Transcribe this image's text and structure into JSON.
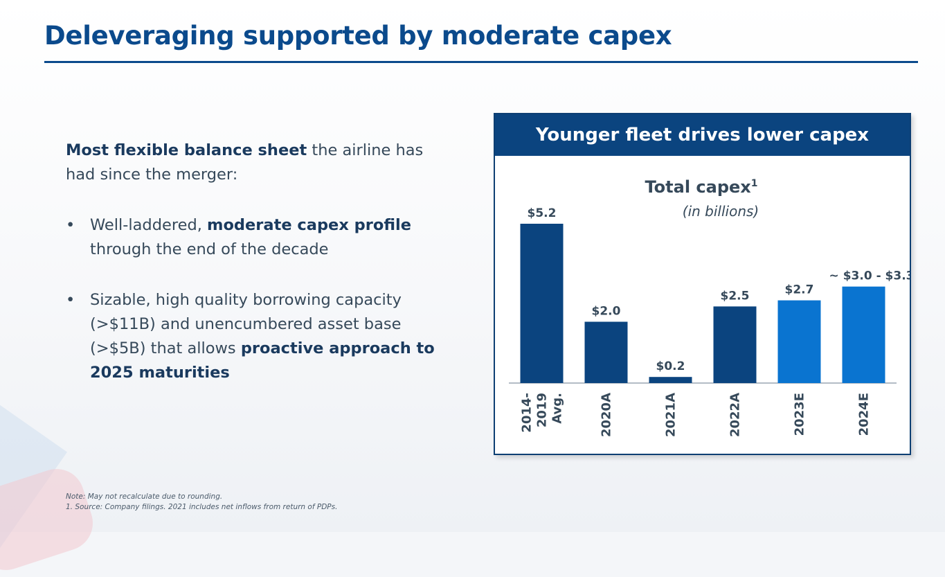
{
  "slide": {
    "title": "Deleveraging supported by moderate capex"
  },
  "intro": {
    "bold": "Most flexible balance sheet",
    "rest": " the airline has had since the merger:"
  },
  "bullets": [
    {
      "glyph": "•",
      "pre": "Well-laddered, ",
      "bold": "moderate capex profile",
      "post": " through the end of the decade"
    },
    {
      "glyph": "•",
      "pre": "Sizable, high quality borrowing capacity (>$11B) and unencumbered asset base (>$5B) that allows ",
      "bold": "proactive approach to 2025 maturities",
      "post": ""
    }
  ],
  "note": {
    "line1": "Note:  May not recalculate due to rounding.",
    "line2": "1. Source: Company filings. 2021 includes net inflows from return of PDPs."
  },
  "panel": {
    "header": "Younger fleet drives lower capex"
  },
  "colors": {
    "title": "#0b4a8c",
    "actual": "#0b447f",
    "estimate": "#0a74d0"
  },
  "chart_data": {
    "type": "bar",
    "title": "Total capex",
    "title_superscript": "1",
    "subtitle": "(in billions)",
    "xlabel": "",
    "ylabel": "",
    "grid": false,
    "categories": [
      [
        "2014-",
        "2019",
        "Avg."
      ],
      [
        "2020A"
      ],
      [
        "2021A"
      ],
      [
        "2022A"
      ],
      [
        "2023E"
      ],
      [
        "2024E"
      ]
    ],
    "values": [
      5.2,
      2.0,
      0.2,
      2.5,
      2.7,
      3.15
    ],
    "kinds": [
      "actual",
      "actual",
      "actual",
      "actual",
      "estimate",
      "estimate"
    ],
    "labels": [
      "$5.2",
      "$2.0",
      "$0.2",
      "$2.5",
      "$2.7",
      "~ $3.0 - $3.3"
    ],
    "ylim": [
      0,
      5.2
    ]
  }
}
